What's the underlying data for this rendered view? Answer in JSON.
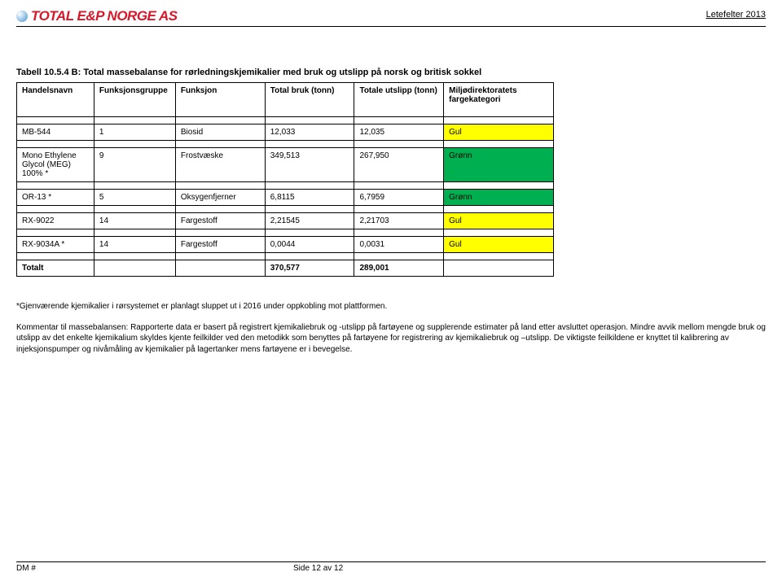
{
  "header": {
    "logo_text": "TOTAL E&P NORGE AS",
    "right_text": "Letefelter 2013"
  },
  "table_title": "Tabell 10.5.4 B: Total massebalanse for rørledningskjemikalier med bruk og utslipp på norsk og britisk sokkel",
  "columns": {
    "c0": "Handelsnavn",
    "c1": "Funksjonsgruppe",
    "c2": "Funksjon",
    "c3": "Total bruk (tonn)",
    "c4": "Totale utslipp (tonn)",
    "c5": "Miljødirektoratets fargekategori"
  },
  "rows": [
    {
      "name": "MB-544",
      "grp": "1",
      "func": "Biosid",
      "bruk": "12,033",
      "utslipp": "12,035",
      "cat": "Gul",
      "color": "gul"
    },
    {
      "name": "Mono Ethylene Glycol (MEG) 100% *",
      "grp": "9",
      "func": "Frostvæske",
      "bruk": "349,513",
      "utslipp": "267,950",
      "cat": "Grønn",
      "color": "gronn"
    },
    {
      "name": "OR-13 *",
      "grp": "5",
      "func": "Oksygenfjerner",
      "bruk": "6,8115",
      "utslipp": "6,7959",
      "cat": "Grønn",
      "color": "gronn"
    },
    {
      "name": "RX-9022",
      "grp": "14",
      "func": "Fargestoff",
      "bruk": "2,21545",
      "utslipp": "2,21703",
      "cat": "Gul",
      "color": "gul"
    },
    {
      "name": "RX-9034A *",
      "grp": "14",
      "func": "Fargestoff",
      "bruk": "0,0044",
      "utslipp": "0,0031",
      "cat": "Gul",
      "color": "gul"
    }
  ],
  "total": {
    "label": "Totalt",
    "bruk": "370,577",
    "utslipp": "289,001"
  },
  "notes": {
    "p1": "*Gjenværende kjemikalier i rørsystemet er planlagt sluppet ut i 2016 under oppkobling mot plattformen.",
    "p2": "Kommentar til massebalansen: Rapporterte data er basert på registrert kjemikaliebruk og -utslipp på fartøyene og supplerende estimater på land etter avsluttet operasjon. Mindre avvik mellom mengde bruk og utslipp av det enkelte kjemikalium skyldes kjente feilkilder ved den metodikk som benyttes på fartøyene for registrering av kjemikaliebruk og –utslipp. De viktigste feilkildene er knyttet til kalibrering av injeksjonspumper og nivåmåling av kjemikalier på lagertanker mens fartøyene er i bevegelse."
  },
  "footer": {
    "left": "DM #",
    "center": "Side 12 av 12"
  },
  "colors": {
    "gul": "#ffff00",
    "gronn": "#00b050"
  }
}
